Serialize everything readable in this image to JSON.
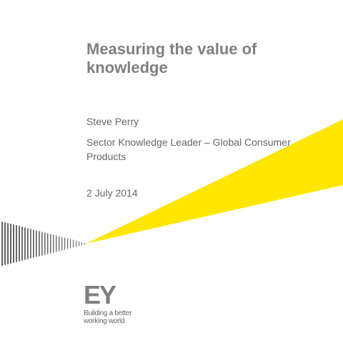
{
  "slide": {
    "title": "Measuring the value of knowledge",
    "presenter_name": "Steve Perry",
    "presenter_role": "Sector Knowledge Leader – Global Consumer Products",
    "date": "2 July 2014"
  },
  "brand": {
    "logo_letters": "EY",
    "tagline_line1": "Building a better",
    "tagline_line2": "working world"
  },
  "colors": {
    "accent_yellow": "#ffe600",
    "text_gray": "#7f7f80",
    "stripe_gray": "#646464"
  }
}
